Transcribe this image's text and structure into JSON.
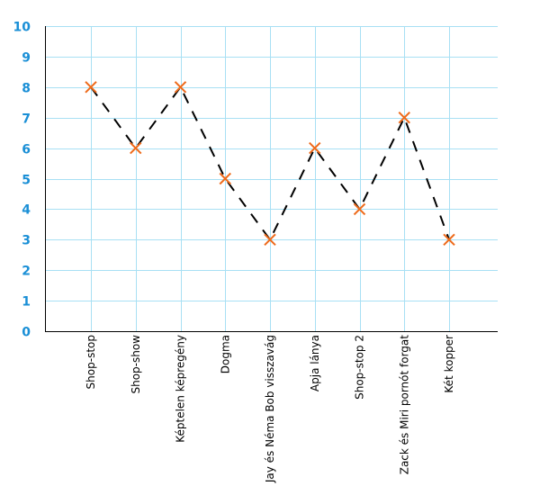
{
  "chart_data": {
    "type": "line",
    "categories": [
      "Shop-stop",
      "Shop-show",
      "Képtelen képregény",
      "Dogma",
      "Jay és Néma Bob visszavág",
      "Apja lánya",
      "Shop-stop 2",
      "Zack és Miri pornót forgat",
      "Két kopper"
    ],
    "series": [
      {
        "values": [
          8,
          6,
          8,
          5,
          3,
          6,
          4,
          7,
          3
        ]
      }
    ],
    "ylim": [
      0,
      10
    ],
    "yticks": [
      0,
      1,
      2,
      3,
      4,
      5,
      6,
      7,
      8,
      9,
      10
    ],
    "grid": true,
    "line_style": "dashed",
    "marker": "x",
    "colors": {
      "line": "#000000",
      "marker": "#ee6a1a",
      "grid": "#a8e0f4",
      "ytick": "#1a8fd6"
    }
  }
}
